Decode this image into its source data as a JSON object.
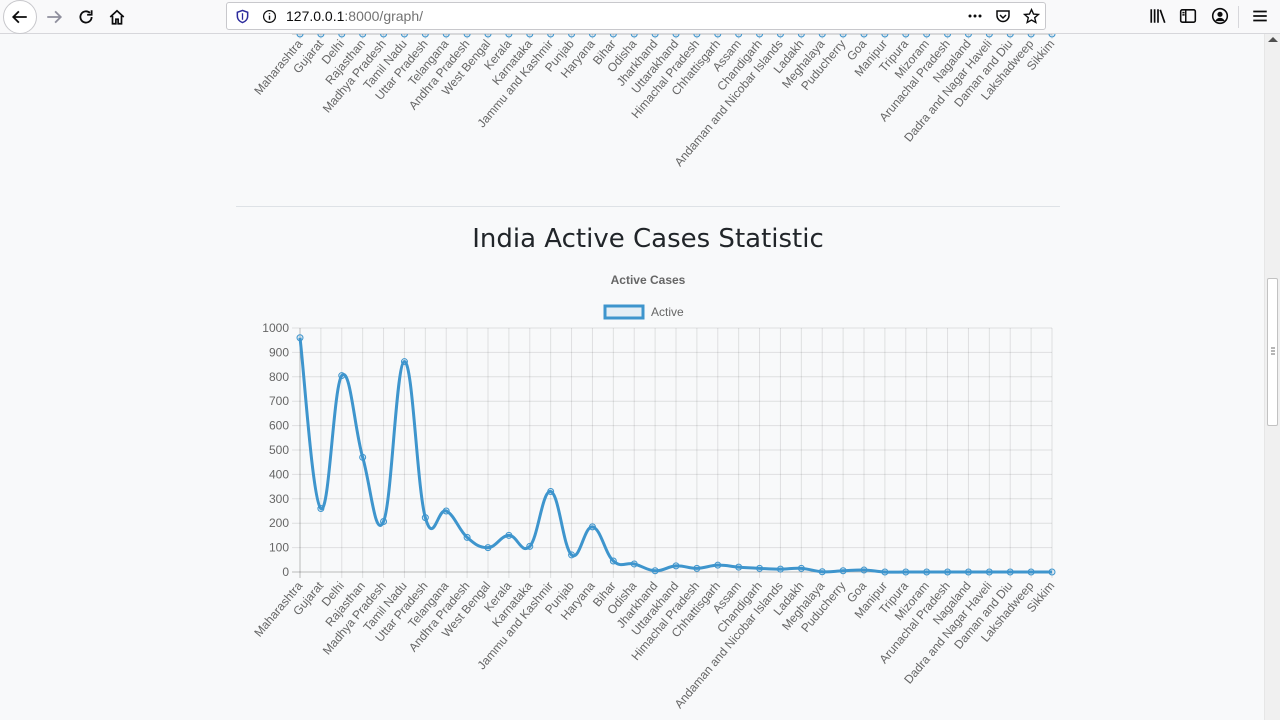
{
  "browser": {
    "url_host": "127.0.0.1",
    "url_path": ":8000/graph/"
  },
  "page": {
    "heading": "India Active Cases Statistic"
  },
  "chart_data": {
    "type": "line",
    "title": "Active Cases",
    "legend": "top",
    "series": [
      {
        "name": "Active",
        "color": "#3e95cd",
        "values": [
          960,
          260,
          805,
          470,
          207,
          862,
          223,
          250,
          142,
          100,
          150,
          105,
          330,
          70,
          185,
          45,
          33,
          5,
          25,
          15,
          28,
          20,
          15,
          12,
          15,
          1,
          5,
          8,
          0,
          0,
          0,
          0,
          0,
          0,
          0,
          0,
          0
        ]
      }
    ],
    "categories": [
      "Maharashtra",
      "Gujarat",
      "Delhi",
      "Rajasthan",
      "Madhya Pradesh",
      "Tamil Nadu",
      "Uttar Pradesh",
      "Telangana",
      "Andhra Pradesh",
      "West Bengal",
      "Kerala",
      "Karnataka",
      "Jammu and Kashmir",
      "Punjab",
      "Haryana",
      "Bihar",
      "Odisha",
      "Jharkhand",
      "Uttarakhand",
      "Himachal Pradesh",
      "Chhattisgarh",
      "Assam",
      "Chandigarh",
      "Andaman and Nicobar Islands",
      "Ladakh",
      "Meghalaya",
      "Puducherry",
      "Goa",
      "Manipur",
      "Tripura",
      "Mizoram",
      "Arunachal Pradesh",
      "Nagaland",
      "Dadra and Nagar Haveli",
      "Daman and Diu",
      "Lakshadweep",
      "Sikkim"
    ],
    "ylim": [
      0,
      1000
    ],
    "yticks": [
      0,
      100,
      200,
      300,
      400,
      500,
      600,
      700,
      800,
      900,
      1000
    ],
    "grid": true
  }
}
